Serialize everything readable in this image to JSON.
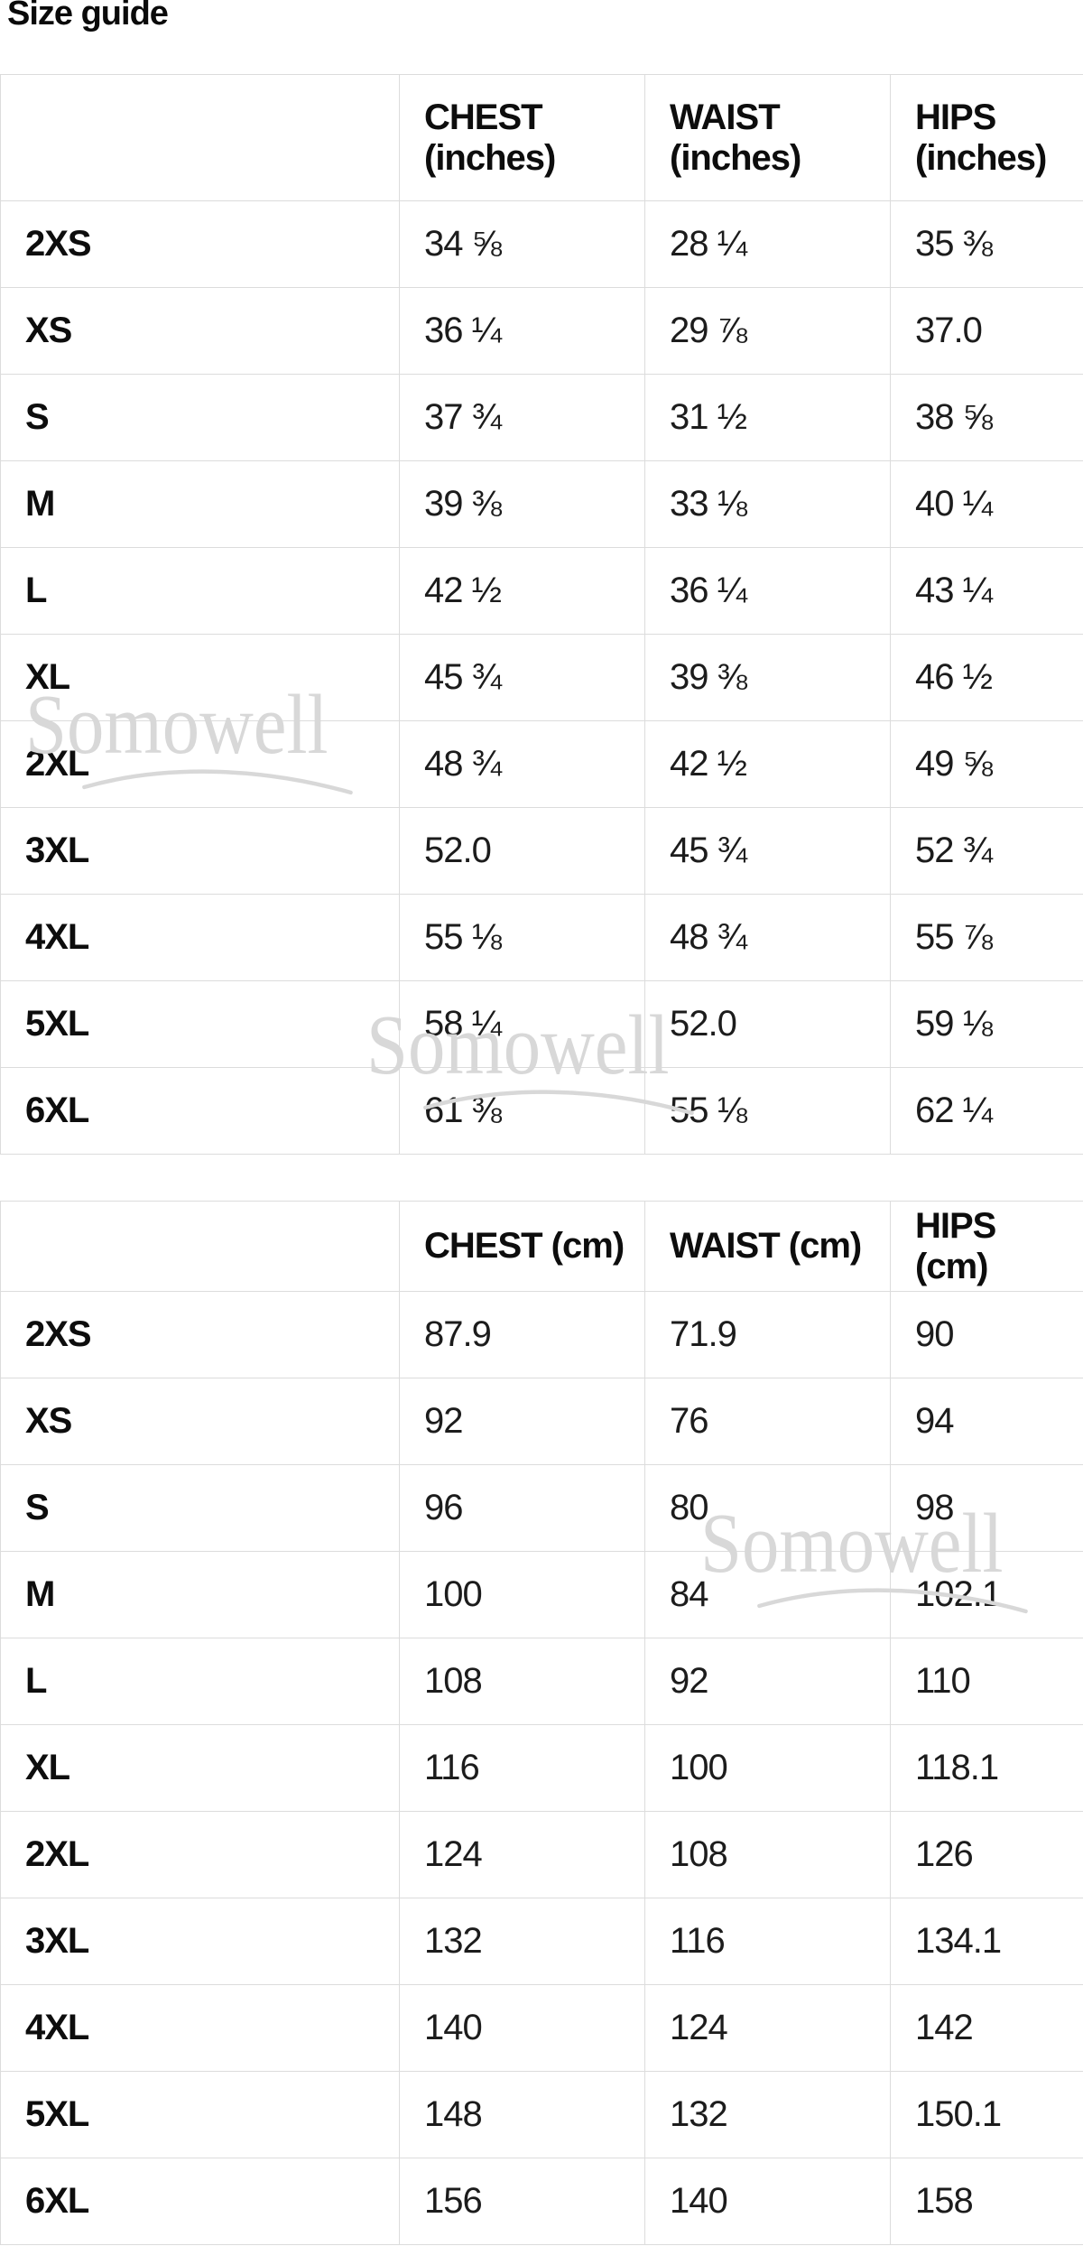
{
  "size_guide": {
    "title": "Size guide",
    "watermark": {
      "text": "Somowell",
      "color": "#d8d8d8"
    },
    "colors": {
      "border": "#dcdcdc",
      "heading_text": "#0d0d0d",
      "body_text": "#1c1c1c",
      "background": "#ffffff"
    },
    "tables": [
      {
        "id": "inches",
        "columns": [
          "",
          "CHEST (inches)",
          "WAIST (inches)",
          "HIPS (inches)"
        ],
        "rows": [
          {
            "size": "2XS",
            "chest": "34 ⅝",
            "waist": "28 ¼",
            "hips": "35 ⅜"
          },
          {
            "size": "XS",
            "chest": "36 ¼",
            "waist": "29 ⅞",
            "hips": "37.0"
          },
          {
            "size": "S",
            "chest": "37 ¾",
            "waist": "31 ½",
            "hips": "38 ⅝"
          },
          {
            "size": "M",
            "chest": "39 ⅜",
            "waist": "33 ⅛",
            "hips": "40 ¼"
          },
          {
            "size": "L",
            "chest": "42 ½",
            "waist": "36 ¼",
            "hips": "43 ¼"
          },
          {
            "size": "XL",
            "chest": "45 ¾",
            "waist": "39 ⅜",
            "hips": "46 ½"
          },
          {
            "size": "2XL",
            "chest": "48 ¾",
            "waist": "42 ½",
            "hips": "49 ⅝"
          },
          {
            "size": "3XL",
            "chest": "52.0",
            "waist": "45 ¾",
            "hips": "52 ¾"
          },
          {
            "size": "4XL",
            "chest": "55 ⅛",
            "waist": "48 ¾",
            "hips": "55 ⅞"
          },
          {
            "size": "5XL",
            "chest": "58 ¼",
            "waist": "52.0",
            "hips": "59 ⅛"
          },
          {
            "size": "6XL",
            "chest": "61 ⅜",
            "waist": "55 ⅛",
            "hips": "62 ¼"
          }
        ]
      },
      {
        "id": "cm",
        "columns": [
          "",
          "CHEST (cm)",
          "WAIST (cm)",
          "HIPS (cm)"
        ],
        "rows": [
          {
            "size": "2XS",
            "chest": "87.9",
            "waist": "71.9",
            "hips": "90"
          },
          {
            "size": "XS",
            "chest": "92",
            "waist": "76",
            "hips": "94"
          },
          {
            "size": "S",
            "chest": "96",
            "waist": "80",
            "hips": "98"
          },
          {
            "size": "M",
            "chest": "100",
            "waist": "84",
            "hips": "102.1"
          },
          {
            "size": "L",
            "chest": "108",
            "waist": "92",
            "hips": "110"
          },
          {
            "size": "XL",
            "chest": "116",
            "waist": "100",
            "hips": "118.1"
          },
          {
            "size": "2XL",
            "chest": "124",
            "waist": "108",
            "hips": "126"
          },
          {
            "size": "3XL",
            "chest": "132",
            "waist": "116",
            "hips": "134.1"
          },
          {
            "size": "4XL",
            "chest": "140",
            "waist": "124",
            "hips": "142"
          },
          {
            "size": "5XL",
            "chest": "148",
            "waist": "132",
            "hips": "150.1"
          },
          {
            "size": "6XL",
            "chest": "156",
            "waist": "140",
            "hips": "158"
          }
        ]
      }
    ]
  }
}
